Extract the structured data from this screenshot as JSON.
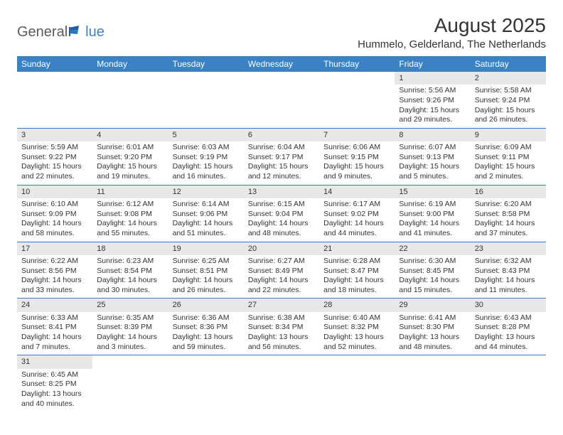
{
  "logo": {
    "general": "General",
    "blue": "lue"
  },
  "header": {
    "month_title": "August 2025",
    "location": "Hummelo, Gelderland, The Netherlands"
  },
  "colors": {
    "header_bg": "#3b82c4",
    "header_text": "#ffffff",
    "daynum_bg": "#e8e8e8",
    "row_border": "#3b82c4",
    "text": "#333333",
    "logo_gray": "#5a5a5a",
    "logo_blue": "#3b82c4"
  },
  "day_headers": [
    "Sunday",
    "Monday",
    "Tuesday",
    "Wednesday",
    "Thursday",
    "Friday",
    "Saturday"
  ],
  "weeks": [
    [
      null,
      null,
      null,
      null,
      null,
      {
        "n": "1",
        "sr": "Sunrise: 5:56 AM",
        "ss": "Sunset: 9:26 PM",
        "dl1": "Daylight: 15 hours",
        "dl2": "and 29 minutes."
      },
      {
        "n": "2",
        "sr": "Sunrise: 5:58 AM",
        "ss": "Sunset: 9:24 PM",
        "dl1": "Daylight: 15 hours",
        "dl2": "and 26 minutes."
      }
    ],
    [
      {
        "n": "3",
        "sr": "Sunrise: 5:59 AM",
        "ss": "Sunset: 9:22 PM",
        "dl1": "Daylight: 15 hours",
        "dl2": "and 22 minutes."
      },
      {
        "n": "4",
        "sr": "Sunrise: 6:01 AM",
        "ss": "Sunset: 9:20 PM",
        "dl1": "Daylight: 15 hours",
        "dl2": "and 19 minutes."
      },
      {
        "n": "5",
        "sr": "Sunrise: 6:03 AM",
        "ss": "Sunset: 9:19 PM",
        "dl1": "Daylight: 15 hours",
        "dl2": "and 16 minutes."
      },
      {
        "n": "6",
        "sr": "Sunrise: 6:04 AM",
        "ss": "Sunset: 9:17 PM",
        "dl1": "Daylight: 15 hours",
        "dl2": "and 12 minutes."
      },
      {
        "n": "7",
        "sr": "Sunrise: 6:06 AM",
        "ss": "Sunset: 9:15 PM",
        "dl1": "Daylight: 15 hours",
        "dl2": "and 9 minutes."
      },
      {
        "n": "8",
        "sr": "Sunrise: 6:07 AM",
        "ss": "Sunset: 9:13 PM",
        "dl1": "Daylight: 15 hours",
        "dl2": "and 5 minutes."
      },
      {
        "n": "9",
        "sr": "Sunrise: 6:09 AM",
        "ss": "Sunset: 9:11 PM",
        "dl1": "Daylight: 15 hours",
        "dl2": "and 2 minutes."
      }
    ],
    [
      {
        "n": "10",
        "sr": "Sunrise: 6:10 AM",
        "ss": "Sunset: 9:09 PM",
        "dl1": "Daylight: 14 hours",
        "dl2": "and 58 minutes."
      },
      {
        "n": "11",
        "sr": "Sunrise: 6:12 AM",
        "ss": "Sunset: 9:08 PM",
        "dl1": "Daylight: 14 hours",
        "dl2": "and 55 minutes."
      },
      {
        "n": "12",
        "sr": "Sunrise: 6:14 AM",
        "ss": "Sunset: 9:06 PM",
        "dl1": "Daylight: 14 hours",
        "dl2": "and 51 minutes."
      },
      {
        "n": "13",
        "sr": "Sunrise: 6:15 AM",
        "ss": "Sunset: 9:04 PM",
        "dl1": "Daylight: 14 hours",
        "dl2": "and 48 minutes."
      },
      {
        "n": "14",
        "sr": "Sunrise: 6:17 AM",
        "ss": "Sunset: 9:02 PM",
        "dl1": "Daylight: 14 hours",
        "dl2": "and 44 minutes."
      },
      {
        "n": "15",
        "sr": "Sunrise: 6:19 AM",
        "ss": "Sunset: 9:00 PM",
        "dl1": "Daylight: 14 hours",
        "dl2": "and 41 minutes."
      },
      {
        "n": "16",
        "sr": "Sunrise: 6:20 AM",
        "ss": "Sunset: 8:58 PM",
        "dl1": "Daylight: 14 hours",
        "dl2": "and 37 minutes."
      }
    ],
    [
      {
        "n": "17",
        "sr": "Sunrise: 6:22 AM",
        "ss": "Sunset: 8:56 PM",
        "dl1": "Daylight: 14 hours",
        "dl2": "and 33 minutes."
      },
      {
        "n": "18",
        "sr": "Sunrise: 6:23 AM",
        "ss": "Sunset: 8:54 PM",
        "dl1": "Daylight: 14 hours",
        "dl2": "and 30 minutes."
      },
      {
        "n": "19",
        "sr": "Sunrise: 6:25 AM",
        "ss": "Sunset: 8:51 PM",
        "dl1": "Daylight: 14 hours",
        "dl2": "and 26 minutes."
      },
      {
        "n": "20",
        "sr": "Sunrise: 6:27 AM",
        "ss": "Sunset: 8:49 PM",
        "dl1": "Daylight: 14 hours",
        "dl2": "and 22 minutes."
      },
      {
        "n": "21",
        "sr": "Sunrise: 6:28 AM",
        "ss": "Sunset: 8:47 PM",
        "dl1": "Daylight: 14 hours",
        "dl2": "and 18 minutes."
      },
      {
        "n": "22",
        "sr": "Sunrise: 6:30 AM",
        "ss": "Sunset: 8:45 PM",
        "dl1": "Daylight: 14 hours",
        "dl2": "and 15 minutes."
      },
      {
        "n": "23",
        "sr": "Sunrise: 6:32 AM",
        "ss": "Sunset: 8:43 PM",
        "dl1": "Daylight: 14 hours",
        "dl2": "and 11 minutes."
      }
    ],
    [
      {
        "n": "24",
        "sr": "Sunrise: 6:33 AM",
        "ss": "Sunset: 8:41 PM",
        "dl1": "Daylight: 14 hours",
        "dl2": "and 7 minutes."
      },
      {
        "n": "25",
        "sr": "Sunrise: 6:35 AM",
        "ss": "Sunset: 8:39 PM",
        "dl1": "Daylight: 14 hours",
        "dl2": "and 3 minutes."
      },
      {
        "n": "26",
        "sr": "Sunrise: 6:36 AM",
        "ss": "Sunset: 8:36 PM",
        "dl1": "Daylight: 13 hours",
        "dl2": "and 59 minutes."
      },
      {
        "n": "27",
        "sr": "Sunrise: 6:38 AM",
        "ss": "Sunset: 8:34 PM",
        "dl1": "Daylight: 13 hours",
        "dl2": "and 56 minutes."
      },
      {
        "n": "28",
        "sr": "Sunrise: 6:40 AM",
        "ss": "Sunset: 8:32 PM",
        "dl1": "Daylight: 13 hours",
        "dl2": "and 52 minutes."
      },
      {
        "n": "29",
        "sr": "Sunrise: 6:41 AM",
        "ss": "Sunset: 8:30 PM",
        "dl1": "Daylight: 13 hours",
        "dl2": "and 48 minutes."
      },
      {
        "n": "30",
        "sr": "Sunrise: 6:43 AM",
        "ss": "Sunset: 8:28 PM",
        "dl1": "Daylight: 13 hours",
        "dl2": "and 44 minutes."
      }
    ],
    [
      {
        "n": "31",
        "sr": "Sunrise: 6:45 AM",
        "ss": "Sunset: 8:25 PM",
        "dl1": "Daylight: 13 hours",
        "dl2": "and 40 minutes."
      },
      null,
      null,
      null,
      null,
      null,
      null
    ]
  ]
}
